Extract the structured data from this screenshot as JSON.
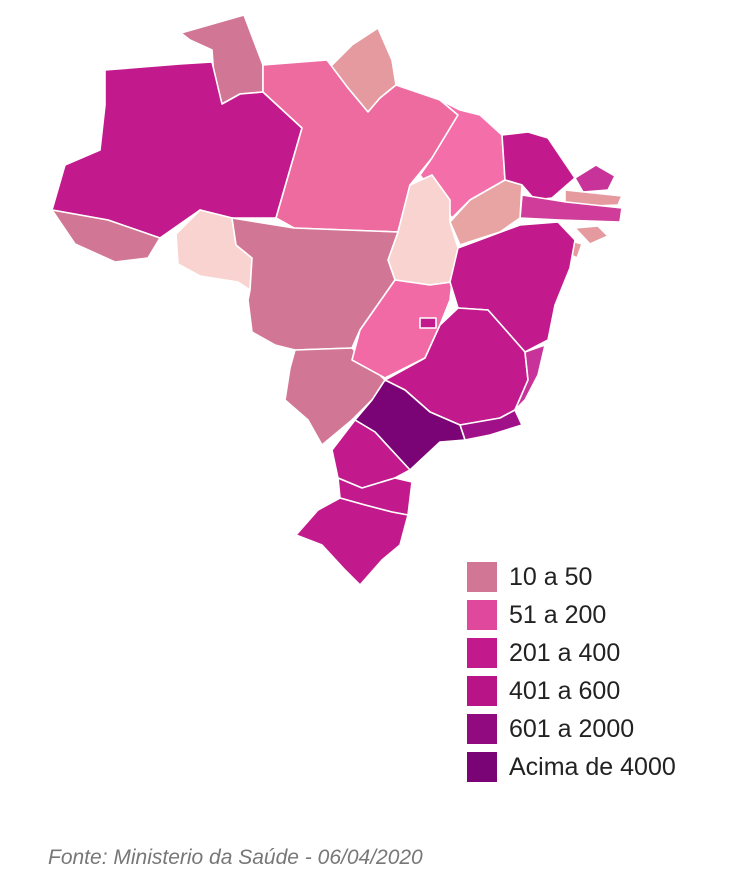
{
  "map": {
    "country": "Brasil",
    "states": [
      {
        "code": "RR",
        "color": "#d27696"
      },
      {
        "code": "AP",
        "color": "#e59a9f"
      },
      {
        "code": "AM",
        "color": "#c21a8c"
      },
      {
        "code": "PA",
        "color": "#ee6ba0"
      },
      {
        "code": "MA",
        "color": "#f46eaa"
      },
      {
        "code": "CE",
        "color": "#c21a8c"
      },
      {
        "code": "RN",
        "color": "#c8339a"
      },
      {
        "code": "PB",
        "color": "#e59a9f"
      },
      {
        "code": "PE",
        "color": "#cf3c9a"
      },
      {
        "code": "AL",
        "color": "#e59a9f"
      },
      {
        "code": "SE",
        "color": "#e59a9f"
      },
      {
        "code": "PI",
        "color": "#e8a3a3"
      },
      {
        "code": "AC",
        "color": "#d27696"
      },
      {
        "code": "RO",
        "color": "#f8d3cf"
      },
      {
        "code": "TO",
        "color": "#f8d3cf"
      },
      {
        "code": "MT",
        "color": "#d27696"
      },
      {
        "code": "MS",
        "color": "#d27696"
      },
      {
        "code": "GO",
        "color": "#f16aa5"
      },
      {
        "code": "DF",
        "color": "#c21a8c"
      },
      {
        "code": "BA",
        "color": "#c21a8c"
      },
      {
        "code": "MG",
        "color": "#c21a8c"
      },
      {
        "code": "ES",
        "color": "#c8339a"
      },
      {
        "code": "RJ",
        "color": "#a01088"
      },
      {
        "code": "SP",
        "color": "#7a0476"
      },
      {
        "code": "PR",
        "color": "#c21a8c"
      },
      {
        "code": "SC",
        "color": "#c21a8c"
      },
      {
        "code": "RS",
        "color": "#c21a8c"
      }
    ]
  },
  "legend": [
    {
      "label": "10 a 50",
      "color": "#d27696"
    },
    {
      "label": "51 a 200",
      "color": "#e0489e"
    },
    {
      "label": "201 a 400",
      "color": "#c21a8c"
    },
    {
      "label": "401 a 600",
      "color": "#b81487"
    },
    {
      "label": "601 a 2000",
      "color": "#920a80"
    },
    {
      "label": "Acima de 4000",
      "color": "#7a0476"
    }
  ],
  "source": "Fonte: Ministerio da Saúde - 06/04/2020"
}
